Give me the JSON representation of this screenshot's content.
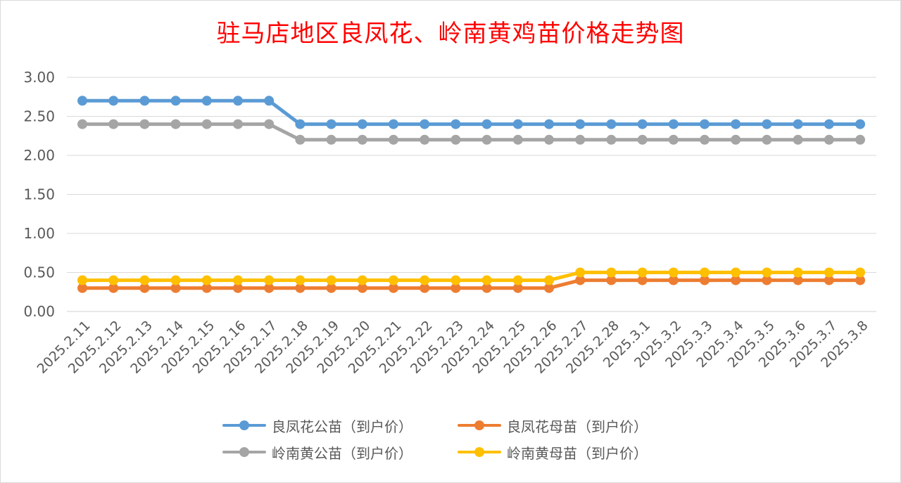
{
  "chart_data": {
    "type": "line",
    "title": "驻马店地区良凤花、岭南黄鸡苗价格走势图",
    "xlabel": "",
    "ylabel": "",
    "ylim": [
      0,
      3
    ],
    "yticks": [
      "0.00",
      "0.50",
      "1.00",
      "1.50",
      "2.00",
      "2.50",
      "3.00"
    ],
    "ytick_values": [
      0,
      0.5,
      1,
      1.5,
      2,
      2.5,
      3
    ],
    "grid": true,
    "legend_position": "bottom",
    "categories": [
      "2025.2.11",
      "2025.2.12",
      "2025.2.13",
      "2025.2.14",
      "2025.2.15",
      "2025.2.16",
      "2025.2.17",
      "2025.2.18",
      "2025.2.19",
      "2025.2.20",
      "2025.2.21",
      "2025.2.22",
      "2025.2.23",
      "2025.2.24",
      "2025.2.25",
      "2025.2.26",
      "2025.2.27",
      "2025.2.28",
      "2025.3.1",
      "2025.3.2",
      "2025.3.3",
      "2025.3.4",
      "2025.3.5",
      "2025.3.6",
      "2025.3.7",
      "2025.3.8"
    ],
    "series": [
      {
        "name": "良凤花公苗（到户价）",
        "color": "#5B9BD5",
        "values": [
          2.7,
          2.7,
          2.7,
          2.7,
          2.7,
          2.7,
          2.7,
          2.4,
          2.4,
          2.4,
          2.4,
          2.4,
          2.4,
          2.4,
          2.4,
          2.4,
          2.4,
          2.4,
          2.4,
          2.4,
          2.4,
          2.4,
          2.4,
          2.4,
          2.4,
          2.4
        ]
      },
      {
        "name": "良凤花母苗（到户价）",
        "color": "#ED7D31",
        "values": [
          0.3,
          0.3,
          0.3,
          0.3,
          0.3,
          0.3,
          0.3,
          0.3,
          0.3,
          0.3,
          0.3,
          0.3,
          0.3,
          0.3,
          0.3,
          0.3,
          0.4,
          0.4,
          0.4,
          0.4,
          0.4,
          0.4,
          0.4,
          0.4,
          0.4,
          0.4
        ]
      },
      {
        "name": "岭南黄公苗（到户价）",
        "color": "#A5A5A5",
        "values": [
          2.4,
          2.4,
          2.4,
          2.4,
          2.4,
          2.4,
          2.4,
          2.2,
          2.2,
          2.2,
          2.2,
          2.2,
          2.2,
          2.2,
          2.2,
          2.2,
          2.2,
          2.2,
          2.2,
          2.2,
          2.2,
          2.2,
          2.2,
          2.2,
          2.2,
          2.2
        ]
      },
      {
        "name": "岭南黄母苗（到户价）",
        "color": "#FFC000",
        "values": [
          0.4,
          0.4,
          0.4,
          0.4,
          0.4,
          0.4,
          0.4,
          0.4,
          0.4,
          0.4,
          0.4,
          0.4,
          0.4,
          0.4,
          0.4,
          0.4,
          0.5,
          0.5,
          0.5,
          0.5,
          0.5,
          0.5,
          0.5,
          0.5,
          0.5,
          0.5
        ]
      }
    ]
  }
}
